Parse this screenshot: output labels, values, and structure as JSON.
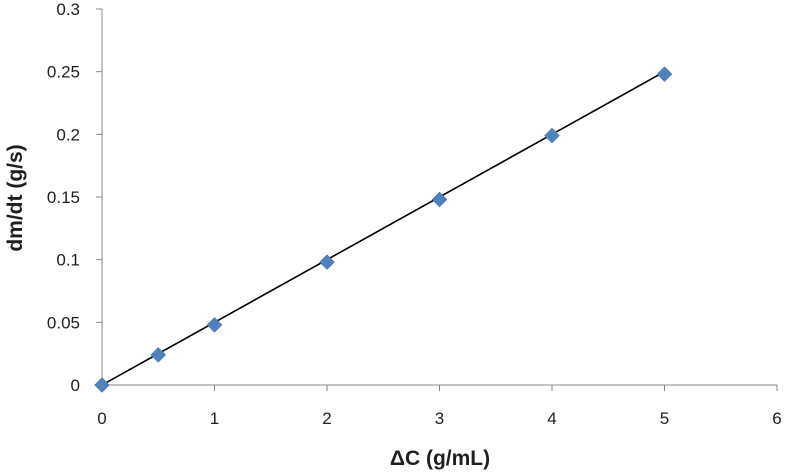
{
  "chart_data": {
    "type": "scatter",
    "title": "",
    "xlabel": "ΔC (g/mL)",
    "ylabel": "dm/dt (g/s)",
    "xlim": [
      0,
      6
    ],
    "ylim": [
      0,
      0.3
    ],
    "x_ticks": [
      "0",
      "1",
      "2",
      "3",
      "4",
      "5",
      "6"
    ],
    "y_ticks": [
      "0",
      "0.05",
      "0.1",
      "0.15",
      "0.2",
      "0.25",
      "0.3"
    ],
    "grid": false,
    "legend": "none",
    "series": [
      {
        "marker": "diamond",
        "color": "#4f81bd",
        "points": [
          {
            "x": 0,
            "y": 0
          },
          {
            "x": 0.5,
            "y": 0.024
          },
          {
            "x": 1,
            "y": 0.048
          },
          {
            "x": 2,
            "y": 0.098
          },
          {
            "x": 3,
            "y": 0.148
          },
          {
            "x": 4,
            "y": 0.199
          },
          {
            "x": 5,
            "y": 0.248
          }
        ]
      }
    ],
    "trendline": {
      "type": "linear",
      "color": "#000000",
      "x_start": 0,
      "y_start": 0,
      "x_end": 5,
      "y_end": 0.25
    }
  }
}
